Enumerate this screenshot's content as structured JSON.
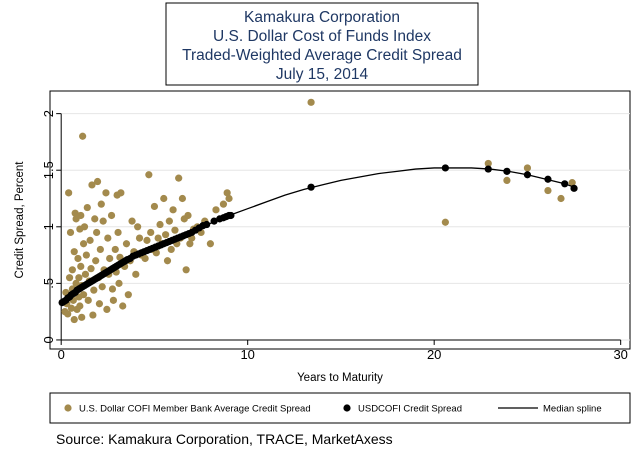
{
  "chart_data": {
    "type": "scatter",
    "title": [
      "Kamakura Corporation",
      "U.S. Dollar Cost of Funds Index",
      "Traded-Weighted Average Credit Spread",
      "July 15, 2014"
    ],
    "xlabel": "Years to Maturity",
    "ylabel": "Credit Spread, Percent",
    "xlim": [
      -0.6,
      30.5
    ],
    "ylim": [
      -0.08,
      2.2
    ],
    "xticks": [
      0,
      10,
      20,
      30
    ],
    "yticks": [
      0,
      0.5,
      1,
      1.5,
      2
    ],
    "ytick_labels": [
      "0",
      ".5",
      "1",
      "1.5",
      "2"
    ],
    "colors": {
      "member": "#a38a4d",
      "cofi": "#000000",
      "spline": "#000000",
      "title": "#1f3864"
    },
    "series": [
      {
        "name": "U.S. Dollar COFI Member Bank Average Credit Spread",
        "kind": "scatter",
        "points": [
          [
            0.2,
            0.25
          ],
          [
            0.25,
            0.42
          ],
          [
            0.3,
            0.32
          ],
          [
            0.35,
            0.23
          ],
          [
            0.4,
            1.3
          ],
          [
            0.45,
            0.55
          ],
          [
            0.5,
            0.95
          ],
          [
            0.55,
            0.28
          ],
          [
            0.6,
            0.45
          ],
          [
            0.6,
            0.62
          ],
          [
            0.65,
            0.35
          ],
          [
            0.7,
            0.18
          ],
          [
            0.7,
            0.78
          ],
          [
            0.75,
            1.12
          ],
          [
            0.8,
            1.07
          ],
          [
            0.8,
            0.5
          ],
          [
            0.85,
            0.27
          ],
          [
            0.9,
            0.72
          ],
          [
            0.95,
            0.38
          ],
          [
            0.95,
            0.55
          ],
          [
            1.0,
            0.98
          ],
          [
            1.0,
            0.3
          ],
          [
            1.05,
            1.1
          ],
          [
            1.05,
            0.65
          ],
          [
            1.1,
            0.2
          ],
          [
            1.1,
            0.48
          ],
          [
            1.15,
            1.8
          ],
          [
            1.2,
            0.85
          ],
          [
            1.2,
            0.4
          ],
          [
            1.25,
            1.0
          ],
          [
            1.3,
            0.58
          ],
          [
            1.35,
            0.75
          ],
          [
            1.4,
            1.17
          ],
          [
            1.45,
            0.35
          ],
          [
            1.5,
            0.52
          ],
          [
            1.55,
            0.88
          ],
          [
            1.6,
            0.63
          ],
          [
            1.65,
            1.37
          ],
          [
            1.7,
            0.22
          ],
          [
            1.75,
            0.44
          ],
          [
            1.8,
            1.07
          ],
          [
            1.85,
            0.7
          ],
          [
            1.9,
            0.95
          ],
          [
            1.95,
            1.4
          ],
          [
            2.0,
            0.55
          ],
          [
            2.05,
            0.32
          ],
          [
            2.1,
            0.8
          ],
          [
            2.15,
            1.2
          ],
          [
            2.2,
            0.47
          ],
          [
            2.25,
            1.05
          ],
          [
            2.3,
            0.62
          ],
          [
            2.4,
            1.3
          ],
          [
            2.45,
            0.27
          ],
          [
            2.5,
            0.9
          ],
          [
            2.55,
            0.58
          ],
          [
            2.6,
            0.72
          ],
          [
            2.7,
            1.1
          ],
          [
            2.75,
            0.45
          ],
          [
            2.8,
            0.35
          ],
          [
            2.9,
            0.8
          ],
          [
            2.95,
            0.6
          ],
          [
            3.0,
            1.28
          ],
          [
            3.05,
            0.95
          ],
          [
            3.1,
            0.5
          ],
          [
            3.15,
            0.73
          ],
          [
            3.2,
            1.3
          ],
          [
            3.3,
            0.3
          ],
          [
            3.4,
            0.65
          ],
          [
            3.5,
            0.85
          ],
          [
            3.6,
            0.4
          ],
          [
            3.7,
            0.7
          ],
          [
            3.8,
            1.05
          ],
          [
            3.9,
            0.78
          ],
          [
            4.0,
            0.58
          ],
          [
            4.1,
            1.0
          ],
          [
            4.2,
            0.9
          ],
          [
            4.3,
            0.75
          ],
          [
            4.5,
            0.72
          ],
          [
            4.6,
            0.88
          ],
          [
            4.7,
            1.46
          ],
          [
            4.8,
            0.95
          ],
          [
            4.9,
            0.8
          ],
          [
            5.0,
            1.18
          ],
          [
            5.1,
            0.77
          ],
          [
            5.2,
            0.9
          ],
          [
            5.3,
            1.02
          ],
          [
            5.4,
            0.85
          ],
          [
            5.5,
            1.25
          ],
          [
            5.6,
            0.93
          ],
          [
            5.7,
            0.7
          ],
          [
            5.8,
            1.05
          ],
          [
            5.9,
            0.8
          ],
          [
            6.0,
            1.15
          ],
          [
            6.1,
            0.97
          ],
          [
            6.2,
            0.85
          ],
          [
            6.3,
            1.43
          ],
          [
            6.4,
            0.9
          ],
          [
            6.5,
            1.25
          ],
          [
            6.6,
            1.07
          ],
          [
            6.7,
            0.62
          ],
          [
            6.8,
            1.1
          ],
          [
            6.9,
            0.85
          ],
          [
            7.0,
            0.9
          ],
          [
            7.1,
            0.98
          ],
          [
            7.3,
            1.0
          ],
          [
            7.5,
            0.95
          ],
          [
            7.7,
            1.05
          ],
          [
            8.0,
            0.85
          ],
          [
            8.3,
            1.15
          ],
          [
            8.7,
            1.2
          ],
          [
            8.9,
            1.3
          ],
          [
            9.0,
            1.25
          ],
          [
            13.4,
            2.1
          ],
          [
            20.6,
            1.04
          ],
          [
            22.9,
            1.56
          ],
          [
            23.9,
            1.41
          ],
          [
            25.0,
            1.52
          ],
          [
            26.1,
            1.32
          ],
          [
            26.8,
            1.25
          ],
          [
            27.4,
            1.39
          ]
        ]
      },
      {
        "name": "USDCOFI Credit Spread",
        "kind": "scatter",
        "points": [
          [
            0.05,
            0.33
          ],
          [
            0.15,
            0.34
          ],
          [
            0.25,
            0.35
          ],
          [
            0.35,
            0.37
          ],
          [
            0.45,
            0.38
          ],
          [
            0.55,
            0.4
          ],
          [
            0.65,
            0.41
          ],
          [
            0.75,
            0.42
          ],
          [
            0.85,
            0.44
          ],
          [
            0.95,
            0.45
          ],
          [
            1.05,
            0.46
          ],
          [
            1.15,
            0.47
          ],
          [
            1.25,
            0.48
          ],
          [
            1.35,
            0.49
          ],
          [
            1.45,
            0.5
          ],
          [
            1.55,
            0.51
          ],
          [
            1.65,
            0.52
          ],
          [
            1.75,
            0.53
          ],
          [
            1.85,
            0.54
          ],
          [
            1.95,
            0.55
          ],
          [
            2.05,
            0.56
          ],
          [
            2.15,
            0.57
          ],
          [
            2.25,
            0.58
          ],
          [
            2.35,
            0.59
          ],
          [
            2.45,
            0.6
          ],
          [
            2.55,
            0.61
          ],
          [
            2.65,
            0.62
          ],
          [
            2.75,
            0.63
          ],
          [
            2.85,
            0.64
          ],
          [
            2.95,
            0.65
          ],
          [
            3.05,
            0.66
          ],
          [
            3.15,
            0.67
          ],
          [
            3.25,
            0.68
          ],
          [
            3.35,
            0.69
          ],
          [
            3.45,
            0.7
          ],
          [
            3.55,
            0.71
          ],
          [
            3.7,
            0.72
          ],
          [
            3.85,
            0.74
          ],
          [
            4.0,
            0.75
          ],
          [
            4.15,
            0.76
          ],
          [
            4.3,
            0.77
          ],
          [
            4.45,
            0.78
          ],
          [
            4.6,
            0.79
          ],
          [
            4.75,
            0.8
          ],
          [
            4.9,
            0.81
          ],
          [
            5.05,
            0.82
          ],
          [
            5.2,
            0.83
          ],
          [
            5.35,
            0.84
          ],
          [
            5.5,
            0.85
          ],
          [
            5.65,
            0.86
          ],
          [
            5.8,
            0.87
          ],
          [
            5.95,
            0.88
          ],
          [
            6.1,
            0.89
          ],
          [
            6.25,
            0.9
          ],
          [
            6.4,
            0.91
          ],
          [
            6.55,
            0.92
          ],
          [
            6.7,
            0.93
          ],
          [
            6.85,
            0.94
          ],
          [
            7.0,
            0.95
          ],
          [
            7.2,
            0.97
          ],
          [
            7.4,
            0.99
          ],
          [
            7.6,
            1.01
          ],
          [
            7.8,
            1.02
          ],
          [
            8.2,
            1.05
          ],
          [
            8.5,
            1.07
          ],
          [
            8.7,
            1.08
          ],
          [
            8.85,
            1.09
          ],
          [
            9.0,
            1.1
          ],
          [
            9.1,
            1.1
          ],
          [
            13.4,
            1.35
          ],
          [
            20.6,
            1.52
          ],
          [
            22.9,
            1.51
          ],
          [
            23.9,
            1.49
          ],
          [
            25.0,
            1.46
          ],
          [
            26.1,
            1.42
          ],
          [
            27.0,
            1.38
          ],
          [
            27.5,
            1.34
          ]
        ]
      },
      {
        "name": "Median spline",
        "kind": "line",
        "points": [
          [
            0,
            0.33
          ],
          [
            1,
            0.45
          ],
          [
            2,
            0.56
          ],
          [
            3,
            0.66
          ],
          [
            4,
            0.75
          ],
          [
            5,
            0.83
          ],
          [
            6,
            0.9
          ],
          [
            7,
            0.97
          ],
          [
            8,
            1.03
          ],
          [
            9,
            1.1
          ],
          [
            10,
            1.16
          ],
          [
            11,
            1.22
          ],
          [
            12,
            1.28
          ],
          [
            13,
            1.33
          ],
          [
            14,
            1.37
          ],
          [
            15,
            1.41
          ],
          [
            16,
            1.44
          ],
          [
            17,
            1.47
          ],
          [
            18,
            1.49
          ],
          [
            19,
            1.51
          ],
          [
            20,
            1.52
          ],
          [
            21,
            1.52
          ],
          [
            22,
            1.52
          ],
          [
            23,
            1.51
          ],
          [
            24,
            1.49
          ],
          [
            25,
            1.46
          ],
          [
            26,
            1.42
          ],
          [
            27,
            1.38
          ],
          [
            27.5,
            1.35
          ]
        ]
      }
    ],
    "legend": {
      "position": "bottom",
      "entries": [
        {
          "label": "U.S. Dollar COFI Member Bank Average Credit Spread",
          "marker": "member-dot"
        },
        {
          "label": "USDCOFI Credit Spread",
          "marker": "cofi-dot"
        },
        {
          "label": "Median spline",
          "marker": "line"
        }
      ]
    },
    "source": "Source: Kamakura Corporation, TRACE, MarketAxess"
  }
}
